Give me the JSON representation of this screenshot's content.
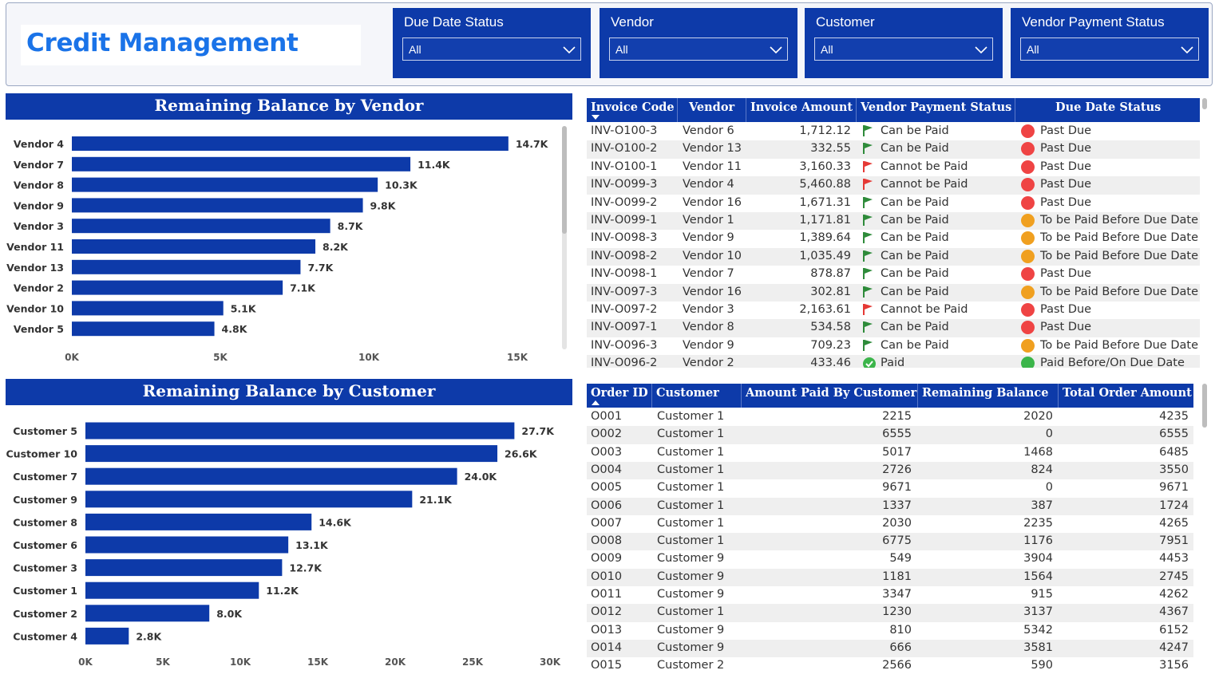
{
  "header": {
    "title": "Credit Management"
  },
  "slicers": [
    {
      "label": "Due Date Status",
      "value": "All"
    },
    {
      "label": "Vendor",
      "value": "All"
    },
    {
      "label": "Customer",
      "value": "All"
    },
    {
      "label": "Vendor Payment Status",
      "value": "All"
    }
  ],
  "colors": {
    "bar": "#0d3aa9",
    "header": "#0d3aa9",
    "title": "#1a73e8",
    "past_due": "#ef4444",
    "before_due": "#f0a020",
    "paid_on_time": "#3bb54a",
    "flag_green": "#2e8b3a",
    "flag_red": "#e53935"
  },
  "chart_data": [
    {
      "type": "bar",
      "orientation": "horizontal",
      "title": "Remaining Balance by Vendor",
      "categories": [
        "Vendor 4",
        "Vendor 7",
        "Vendor 8",
        "Vendor 9",
        "Vendor 3",
        "Vendor 11",
        "Vendor 13",
        "Vendor 2",
        "Vendor 10",
        "Vendor 5"
      ],
      "values": [
        14700,
        11400,
        10300,
        9800,
        8700,
        8200,
        7700,
        7100,
        5100,
        4800
      ],
      "data_labels": [
        "14.7K",
        "11.4K",
        "10.3K",
        "9.8K",
        "8.7K",
        "8.2K",
        "7.7K",
        "7.1K",
        "5.1K",
        "4.8K"
      ],
      "x_ticks": [
        "0K",
        "5K",
        "10K",
        "15K"
      ],
      "xlim": [
        0,
        15000
      ],
      "grid": false
    },
    {
      "type": "bar",
      "orientation": "horizontal",
      "title": "Remaining Balance by Customer",
      "categories": [
        "Customer 5",
        "Customer 10",
        "Customer 7",
        "Customer 9",
        "Customer 8",
        "Customer 6",
        "Customer 3",
        "Customer 1",
        "Customer 2",
        "Customer 4"
      ],
      "values": [
        27700,
        26600,
        24000,
        21100,
        14600,
        13100,
        12700,
        11200,
        8000,
        2800
      ],
      "data_labels": [
        "27.7K",
        "26.6K",
        "24.0K",
        "21.1K",
        "14.6K",
        "13.1K",
        "12.7K",
        "11.2K",
        "8.0K",
        "2.8K"
      ],
      "x_ticks": [
        "0K",
        "5K",
        "10K",
        "15K",
        "20K",
        "25K",
        "30K"
      ],
      "xlim": [
        0,
        30000
      ],
      "grid": false
    }
  ],
  "invoice_table": {
    "columns": [
      "Invoice Code",
      "Vendor",
      "Invoice Amount",
      "Vendor Payment Status",
      "Due Date Status"
    ],
    "rows": [
      {
        "code": "INV-O100-3",
        "vendor": "Vendor 6",
        "amount": "1,712.12",
        "payment": "Can be Paid",
        "pay_icon": "flag-green",
        "due": "Past Due",
        "due_color": "#ef4444"
      },
      {
        "code": "INV-O100-2",
        "vendor": "Vendor 13",
        "amount": "332.55",
        "payment": "Can be Paid",
        "pay_icon": "flag-green",
        "due": "Past Due",
        "due_color": "#ef4444"
      },
      {
        "code": "INV-O100-1",
        "vendor": "Vendor 11",
        "amount": "3,160.33",
        "payment": "Cannot be Paid",
        "pay_icon": "flag-red",
        "due": "Past Due",
        "due_color": "#ef4444"
      },
      {
        "code": "INV-O099-3",
        "vendor": "Vendor 4",
        "amount": "5,460.88",
        "payment": "Cannot be Paid",
        "pay_icon": "flag-red",
        "due": "Past Due",
        "due_color": "#ef4444"
      },
      {
        "code": "INV-O099-2",
        "vendor": "Vendor 16",
        "amount": "1,671.31",
        "payment": "Can be Paid",
        "pay_icon": "flag-green",
        "due": "Past Due",
        "due_color": "#ef4444"
      },
      {
        "code": "INV-O099-1",
        "vendor": "Vendor 1",
        "amount": "1,171.81",
        "payment": "Can be Paid",
        "pay_icon": "flag-green",
        "due": "To be Paid Before Due Date",
        "due_color": "#f0a020"
      },
      {
        "code": "INV-O098-3",
        "vendor": "Vendor 9",
        "amount": "1,389.64",
        "payment": "Can be Paid",
        "pay_icon": "flag-green",
        "due": "To be Paid Before Due Date",
        "due_color": "#f0a020"
      },
      {
        "code": "INV-O098-2",
        "vendor": "Vendor 10",
        "amount": "1,035.49",
        "payment": "Can be Paid",
        "pay_icon": "flag-green",
        "due": "To be Paid Before Due Date",
        "due_color": "#f0a020"
      },
      {
        "code": "INV-O098-1",
        "vendor": "Vendor 7",
        "amount": "878.87",
        "payment": "Can be Paid",
        "pay_icon": "flag-green",
        "due": "Past Due",
        "due_color": "#ef4444"
      },
      {
        "code": "INV-O097-3",
        "vendor": "Vendor 16",
        "amount": "302.81",
        "payment": "Can be Paid",
        "pay_icon": "flag-green",
        "due": "To be Paid Before Due Date",
        "due_color": "#f0a020"
      },
      {
        "code": "INV-O097-2",
        "vendor": "Vendor 3",
        "amount": "2,163.61",
        "payment": "Cannot be Paid",
        "pay_icon": "flag-red",
        "due": "Past Due",
        "due_color": "#ef4444"
      },
      {
        "code": "INV-O097-1",
        "vendor": "Vendor 8",
        "amount": "534.58",
        "payment": "Can be Paid",
        "pay_icon": "flag-green",
        "due": "Past Due",
        "due_color": "#ef4444"
      },
      {
        "code": "INV-O096-3",
        "vendor": "Vendor 9",
        "amount": "709.23",
        "payment": "Can be Paid",
        "pay_icon": "flag-green",
        "due": "To be Paid Before Due Date",
        "due_color": "#f0a020"
      },
      {
        "code": "INV-O096-2",
        "vendor": "Vendor 2",
        "amount": "433.46",
        "payment": "Paid",
        "pay_icon": "check-circle",
        "due": "Paid Before/On Due Date",
        "due_color": "#3bb54a"
      }
    ]
  },
  "order_table": {
    "columns": [
      "Order ID",
      "Customer",
      "Amount Paid By Customer",
      "Remaining Balance",
      "Total Order Amount"
    ],
    "rows": [
      {
        "id": "O001",
        "customer": "Customer 1",
        "paid": "2215",
        "remaining": "2020",
        "total": "4235"
      },
      {
        "id": "O002",
        "customer": "Customer 1",
        "paid": "6555",
        "remaining": "0",
        "total": "6555"
      },
      {
        "id": "O003",
        "customer": "Customer 1",
        "paid": "5017",
        "remaining": "1468",
        "total": "6485"
      },
      {
        "id": "O004",
        "customer": "Customer 1",
        "paid": "2726",
        "remaining": "824",
        "total": "3550"
      },
      {
        "id": "O005",
        "customer": "Customer 1",
        "paid": "9671",
        "remaining": "0",
        "total": "9671"
      },
      {
        "id": "O006",
        "customer": "Customer 1",
        "paid": "1337",
        "remaining": "387",
        "total": "1724"
      },
      {
        "id": "O007",
        "customer": "Customer 1",
        "paid": "2030",
        "remaining": "2235",
        "total": "4265"
      },
      {
        "id": "O008",
        "customer": "Customer 1",
        "paid": "6775",
        "remaining": "1176",
        "total": "7951"
      },
      {
        "id": "O009",
        "customer": "Customer 9",
        "paid": "549",
        "remaining": "3904",
        "total": "4453"
      },
      {
        "id": "O010",
        "customer": "Customer 9",
        "paid": "1181",
        "remaining": "1564",
        "total": "2745"
      },
      {
        "id": "O011",
        "customer": "Customer 9",
        "paid": "3347",
        "remaining": "915",
        "total": "4262"
      },
      {
        "id": "O012",
        "customer": "Customer 1",
        "paid": "1230",
        "remaining": "3137",
        "total": "4367"
      },
      {
        "id": "O013",
        "customer": "Customer 9",
        "paid": "810",
        "remaining": "5342",
        "total": "6152"
      },
      {
        "id": "O014",
        "customer": "Customer 9",
        "paid": "666",
        "remaining": "3581",
        "total": "4247"
      },
      {
        "id": "O015",
        "customer": "Customer 2",
        "paid": "2566",
        "remaining": "590",
        "total": "3156"
      }
    ]
  }
}
